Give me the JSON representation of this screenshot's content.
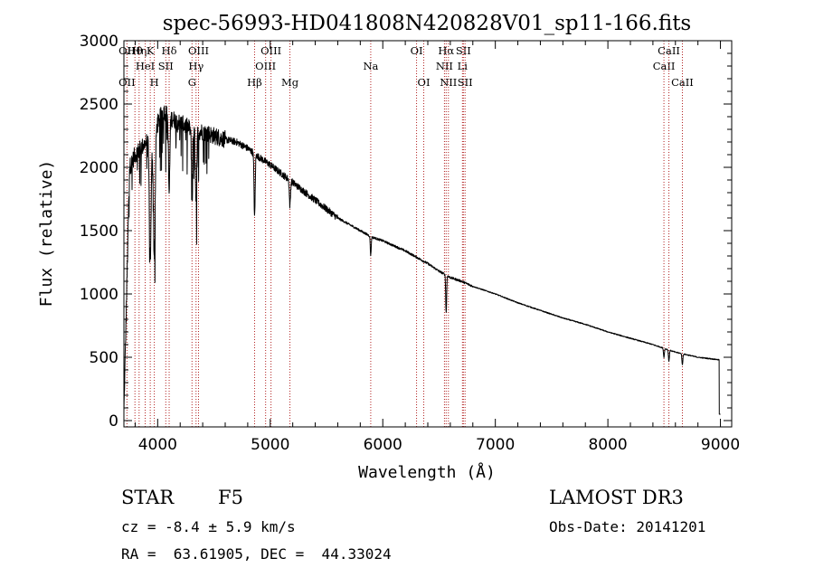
{
  "colors": {
    "background": "#ffffff",
    "spectrum": "#000000",
    "line_markers": "#b22222",
    "axes": "#000000"
  },
  "info": {
    "object_class": "STAR",
    "subclass": "F5",
    "cz": "cz = -8.4 ± 5.9 km/s",
    "coords": "RA =  63.61905, DEC =  44.33024",
    "survey": "LAMOST DR3",
    "obs_date": "Obs-Date: 20141201"
  },
  "chart_data": {
    "type": "line",
    "title": "spec-56993-HD041808N420828V01_sp11-166.fits",
    "xlabel": "Wavelength (Å)",
    "ylabel": "Flux (relative)",
    "xlim": [
      3700,
      9100
    ],
    "ylim": [
      -50,
      3000
    ],
    "x_ticks": [
      4000,
      5000,
      6000,
      7000,
      8000,
      9000
    ],
    "y_ticks": [
      0,
      500,
      1000,
      1500,
      2000,
      2500,
      3000
    ],
    "spectrum_anchors": {
      "x": [
        3700,
        3750,
        3800,
        3850,
        3900,
        3950,
        4000,
        4050,
        4100,
        4200,
        4300,
        4400,
        4500,
        4600,
        4700,
        4800,
        4900,
        5000,
        5100,
        5200,
        5300,
        5400,
        5500,
        5600,
        5700,
        5800,
        5900,
        6000,
        6100,
        6200,
        6300,
        6400,
        6500,
        6600,
        6700,
        6800,
        7000,
        7200,
        7400,
        7600,
        7800,
        8000,
        8200,
        8400,
        8600,
        8800,
        8990,
        9000
      ],
      "y": [
        50,
        2000,
        2100,
        2150,
        2200,
        2250,
        2350,
        2450,
        2400,
        2350,
        2300,
        2280,
        2250,
        2220,
        2200,
        2150,
        2080,
        2020,
        1950,
        1880,
        1810,
        1740,
        1670,
        1600,
        1550,
        1500,
        1450,
        1420,
        1380,
        1340,
        1290,
        1240,
        1180,
        1130,
        1100,
        1060,
        1000,
        930,
        870,
        810,
        760,
        700,
        650,
        600,
        540,
        500,
        480,
        50
      ]
    },
    "absorption_features": [
      {
        "name": "H-epsilon/CaII H",
        "wavelength": 3970,
        "depth": 1000,
        "width": 8
      },
      {
        "name": "CaII K",
        "wavelength": 3934,
        "depth": 950,
        "width": 8
      },
      {
        "name": "H-delta",
        "wavelength": 4102,
        "depth": 600,
        "width": 6
      },
      {
        "name": "G band",
        "wavelength": 4305,
        "depth": 350,
        "width": 6
      },
      {
        "name": "H-gamma",
        "wavelength": 4341,
        "depth": 600,
        "width": 6
      },
      {
        "name": "H-beta",
        "wavelength": 4861,
        "depth": 500,
        "width": 5
      },
      {
        "name": "Mg",
        "wavelength": 5175,
        "depth": 200,
        "width": 5
      },
      {
        "name": "Na",
        "wavelength": 5893,
        "depth": 150,
        "width": 4
      },
      {
        "name": "H-alpha",
        "wavelength": 6563,
        "depth": 300,
        "width": 4
      },
      {
        "name": "CaII",
        "wavelength": 8498,
        "depth": 70,
        "width": 4
      },
      {
        "name": "CaII",
        "wavelength": 8542,
        "depth": 90,
        "width": 4
      },
      {
        "name": "CaII",
        "wavelength": 8662,
        "depth": 90,
        "width": 4
      }
    ],
    "line_markers": [
      {
        "wavelength": 3727,
        "top": "OII",
        "mid": "",
        "bot": "OII"
      },
      {
        "wavelength": 3798,
        "top": "Hθ",
        "mid": "",
        "bot": ""
      },
      {
        "wavelength": 3835,
        "top": "Hη",
        "mid": "",
        "bot": ""
      },
      {
        "wavelength": 3889,
        "top": "",
        "mid": "HeI",
        "bot": ""
      },
      {
        "wavelength": 3934,
        "top": "K",
        "mid": "",
        "bot": ""
      },
      {
        "wavelength": 3970,
        "top": "",
        "mid": "",
        "bot": "H"
      },
      {
        "wavelength": 4072,
        "top": "",
        "mid": "SII",
        "bot": ""
      },
      {
        "wavelength": 4102,
        "top": "Hδ",
        "mid": "",
        "bot": ""
      },
      {
        "wavelength": 4305,
        "top": "",
        "mid": "",
        "bot": "G"
      },
      {
        "wavelength": 4341,
        "top": "",
        "mid": "Hγ",
        "bot": ""
      },
      {
        "wavelength": 4363,
        "top": "OIII",
        "mid": "",
        "bot": ""
      },
      {
        "wavelength": 4861,
        "top": "",
        "mid": "",
        "bot": "Hβ"
      },
      {
        "wavelength": 4959,
        "top": "",
        "mid": "OIII",
        "bot": ""
      },
      {
        "wavelength": 5007,
        "top": "OIII",
        "mid": "",
        "bot": ""
      },
      {
        "wavelength": 5175,
        "top": "",
        "mid": "",
        "bot": "Mg"
      },
      {
        "wavelength": 5893,
        "top": "",
        "mid": "Na",
        "bot": ""
      },
      {
        "wavelength": 6300,
        "top": "OI",
        "mid": "",
        "bot": ""
      },
      {
        "wavelength": 6364,
        "top": "",
        "mid": "",
        "bot": "OI"
      },
      {
        "wavelength": 6548,
        "top": "",
        "mid": "NII",
        "bot": ""
      },
      {
        "wavelength": 6563,
        "top": "Hα",
        "mid": "",
        "bot": ""
      },
      {
        "wavelength": 6583,
        "top": "",
        "mid": "",
        "bot": "NII"
      },
      {
        "wavelength": 6708,
        "top": "",
        "mid": "Li",
        "bot": ""
      },
      {
        "wavelength": 6716,
        "top": "SII",
        "mid": "",
        "bot": ""
      },
      {
        "wavelength": 6731,
        "top": "",
        "mid": "",
        "bot": "SII"
      },
      {
        "wavelength": 8498,
        "top": "",
        "mid": "CaII",
        "bot": ""
      },
      {
        "wavelength": 8542,
        "top": "CaII",
        "mid": "",
        "bot": ""
      },
      {
        "wavelength": 8662,
        "top": "",
        "mid": "",
        "bot": "CaII"
      }
    ]
  }
}
